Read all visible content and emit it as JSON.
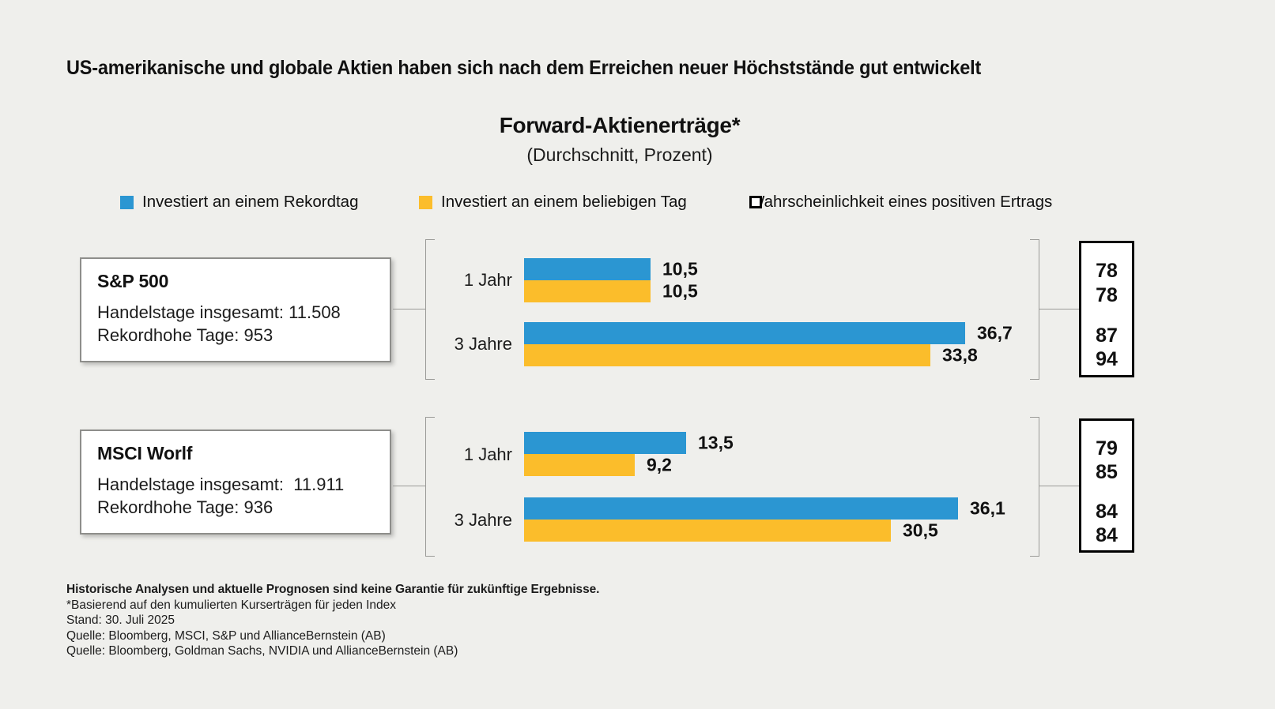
{
  "header": {
    "title": "US-amerikanische und globale Aktien haben sich nach dem Erreichen neuer Höchststände gut entwickelt"
  },
  "chart": {
    "title": "Forward-Aktienerträge*",
    "subtitle": "(Durchschnitt, Prozent)"
  },
  "legend": [
    {
      "label": "Investiert an einem Rekordtag",
      "color": "#2B96D2"
    },
    {
      "label": "Investiert an einem beliebigen Tag",
      "color": "#FBBD2B"
    },
    {
      "label": "Wahrscheinlichkeit eines positiven Ertrags",
      "color": "#FFFFFF"
    }
  ],
  "colors": {
    "record_day": "#2B96D2",
    "any_day": "#FBBD2B",
    "background": "#EFEFEC"
  },
  "chart_data": {
    "type": "bar",
    "orientation": "horizontal",
    "title": "Forward-Aktienerträge*",
    "subtitle": "(Durchschnitt, Prozent)",
    "unit": "Prozent",
    "series": [
      "Investiert an einem Rekordtag",
      "Investiert an einem beliebigen Tag"
    ],
    "extra_metric": "Wahrscheinlichkeit eines positiven Ertrags",
    "groups": [
      {
        "index": "S&P 500",
        "info_lines": [
          "Handelstage insgesamt: 11.508",
          "Rekordhohe Tage: 953"
        ],
        "rows": [
          {
            "label": "1 Jahr",
            "record": {
              "value": 10.5,
              "label": "10,5",
              "probability": "78"
            },
            "any": {
              "value": 10.5,
              "label": "10,5",
              "probability": "78"
            }
          },
          {
            "label": "3 Jahre",
            "record": {
              "value": 36.7,
              "label": "36,7",
              "probability": "87"
            },
            "any": {
              "value": 33.8,
              "label": "33,8",
              "probability": "94"
            }
          }
        ]
      },
      {
        "index": "MSCI Worlf",
        "info_lines": [
          "Handelstage insgesamt:  11.911",
          "Rekordhohe Tage: 936"
        ],
        "rows": [
          {
            "label": "1 Jahr",
            "record": {
              "value": 13.5,
              "label": "13,5",
              "probability": "79"
            },
            "any": {
              "value": 9.2,
              "label": "9,2",
              "probability": "85"
            }
          },
          {
            "label": "3 Jahre",
            "record": {
              "value": 36.1,
              "label": "36,1",
              "probability": "84"
            },
            "any": {
              "value": 30.5,
              "label": "30,5",
              "probability": "84"
            }
          }
        ]
      }
    ]
  },
  "footnotes": {
    "bold": "Historische Analysen und aktuelle Prognosen sind keine Garantie für zukünftige Ergebnisse.",
    "lines": [
      "*Basierend auf den kumulierten Kurserträgen für jeden Index",
      "Stand: 30. Juli 2025",
      "Quelle: Bloomberg, MSCI, S&P und AllianceBernstein (AB)",
      "Quelle: Bloomberg, Goldman Sachs, NVIDIA und AllianceBernstein (AB)"
    ]
  }
}
